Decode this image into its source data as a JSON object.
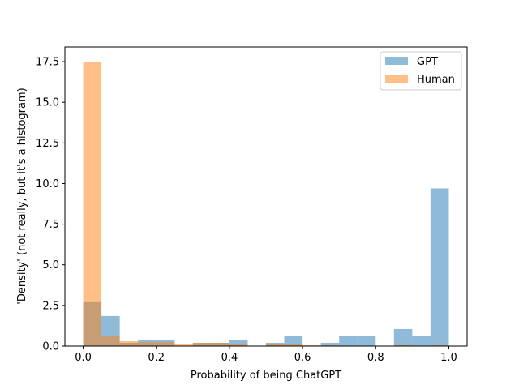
{
  "chart_data": {
    "type": "bar",
    "xlabel": "Probability of being ChatGPT",
    "ylabel": "'Density' (not really, but it's a histogram)",
    "xlim": [
      -0.05,
      1.05
    ],
    "ylim": [
      0,
      18.4
    ],
    "x_ticks": [
      "0.0",
      "0.2",
      "0.4",
      "0.6",
      "0.8",
      "1.0"
    ],
    "y_ticks": [
      "0.0",
      "2.5",
      "5.0",
      "7.5",
      "10.0",
      "12.5",
      "15.0",
      "17.5"
    ],
    "legend_position": "top-right",
    "bin_width": 0.05,
    "bin_starts": [
      0.0,
      0.05,
      0.1,
      0.15,
      0.2,
      0.25,
      0.3,
      0.35,
      0.4,
      0.45,
      0.5,
      0.55,
      0.6,
      0.65,
      0.7,
      0.75,
      0.8,
      0.85,
      0.9,
      0.95
    ],
    "series": [
      {
        "name": "GPT",
        "color": "#1f77b4",
        "alpha": 0.5,
        "values": [
          2.7,
          1.85,
          0.2,
          0.4,
          0.4,
          0.0,
          0.2,
          0.2,
          0.4,
          0.0,
          0.2,
          0.6,
          0.0,
          0.2,
          0.6,
          0.6,
          0.0,
          1.05,
          0.6,
          9.7
        ]
      },
      {
        "name": "Human",
        "color": "#ff7f0e",
        "alpha": 0.5,
        "values": [
          17.5,
          0.6,
          0.3,
          0.25,
          0.25,
          0.15,
          0.2,
          0.2,
          0.15,
          0.0,
          0.1,
          0.1,
          0.05,
          0.05,
          0.0,
          0.0,
          0.0,
          0.05,
          0.0,
          0.05
        ]
      }
    ]
  }
}
